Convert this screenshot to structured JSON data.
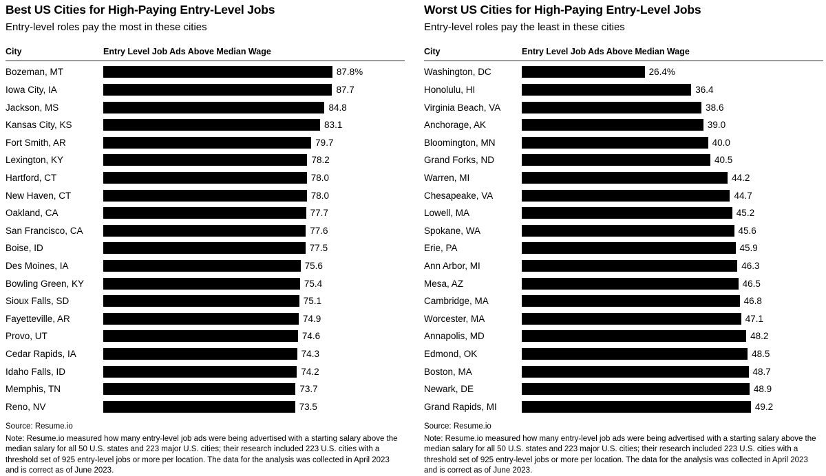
{
  "chart_data": [
    {
      "type": "bar",
      "title": "Best US Cities for High-Paying Entry-Level Jobs",
      "subtitle": "Entry-level roles pay the most in these cities",
      "city_header": "City",
      "value_header": "Entry Level Job Ads Above Median Wage",
      "categories": [
        "Bozeman, MT",
        "Iowa City, IA",
        "Jackson, MS",
        "Kansas City, KS",
        "Fort Smith, AR",
        "Lexington, KY",
        "Hartford, CT",
        "New Haven, CT",
        "Oakland, CA",
        "San Francisco, CA",
        "Boise, ID",
        "Des Moines, IA",
        "Bowling Green, KY",
        "Sioux Falls, SD",
        "Fayetteville, AR",
        "Provo, UT",
        "Cedar Rapids, IA",
        "Idaho Falls, ID",
        "Memphis, TN",
        "Reno, NV"
      ],
      "values": [
        87.8,
        87.7,
        84.8,
        83.1,
        79.7,
        78.2,
        78.0,
        78.0,
        77.7,
        77.6,
        77.5,
        75.6,
        75.4,
        75.1,
        74.9,
        74.6,
        74.3,
        74.2,
        73.7,
        73.5
      ],
      "value_labels": [
        "87.8%",
        "87.7",
        "84.8",
        "83.1",
        "79.7",
        "78.2",
        "78.0",
        "78.0",
        "77.7",
        "77.6",
        "77.5",
        "75.6",
        "75.4",
        "75.1",
        "74.9",
        "74.6",
        "74.3",
        "74.2",
        "73.7",
        "73.5"
      ],
      "xlim": [
        0,
        87.8
      ],
      "bar_color": "#000000",
      "legend": "none",
      "grid": "off",
      "source": "Source: Resume.io",
      "note": "Note: Resume.io measured how many entry-level job ads were being advertised with a starting salary above the median salary for all 50 U.S. states and 223 major U.S. cities; their research included 223 U.S. cities with a threshold set of 925 entry-level jobs or more per location. The data for the analysis was collected in April 2023 and is correct as of June 2023."
    },
    {
      "type": "bar",
      "title": "Worst US Cities for High-Paying Entry-Level Jobs",
      "subtitle": "Entry-level roles pay the least in these cities",
      "city_header": "City",
      "value_header": "Entry Level Job Ads Above Median Wage",
      "categories": [
        "Washington, DC",
        "Honolulu, HI",
        "Virginia Beach, VA",
        "Anchorage, AK",
        "Bloomington, MN",
        "Grand Forks, ND",
        "Warren, MI",
        "Chesapeake, VA",
        "Lowell, MA",
        "Spokane, WA",
        "Erie, PA",
        "Ann Arbor, MI",
        "Mesa, AZ",
        "Cambridge, MA",
        "Worcester, MA",
        "Annapolis, MD",
        "Edmond, OK",
        "Boston, MA",
        "Newark, DE",
        "Grand Rapids, MI"
      ],
      "values": [
        26.4,
        36.4,
        38.6,
        39.0,
        40.0,
        40.5,
        44.2,
        44.7,
        45.2,
        45.6,
        45.9,
        46.3,
        46.5,
        46.8,
        47.1,
        48.2,
        48.5,
        48.7,
        48.9,
        49.2
      ],
      "value_labels": [
        "26.4%",
        "36.4",
        "38.6",
        "39.0",
        "40.0",
        "40.5",
        "44.2",
        "44.7",
        "45.2",
        "45.6",
        "45.9",
        "46.3",
        "46.5",
        "46.8",
        "47.1",
        "48.2",
        "48.5",
        "48.7",
        "48.9",
        "49.2"
      ],
      "xlim": [
        0,
        49.2
      ],
      "bar_color": "#000000",
      "legend": "none",
      "grid": "off",
      "source": "Source: Resume.io",
      "note": "Note: Resume.io measured how many entry-level job ads were being advertised with a starting salary above the median salary for all 50 U.S. states and 223 major U.S. cities; their research included 223 U.S. cities with a threshold set of 925 entry-level jobs or more per location. The data for the analysis was collected in April 2023 and is correct as of June 2023."
    }
  ]
}
